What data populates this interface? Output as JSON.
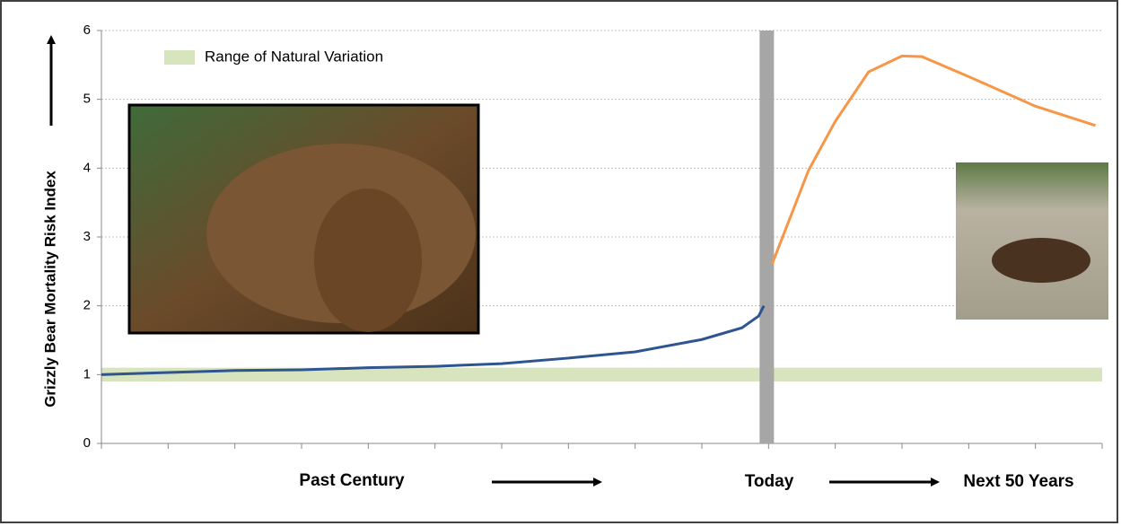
{
  "chart_data": {
    "type": "line",
    "y_label": "Grizzly Bear Mortality Risk Index",
    "ylim": [
      0,
      6
    ],
    "yticks": [
      0,
      1,
      2,
      3,
      4,
      5,
      6
    ],
    "xlim": [
      0,
      15
    ],
    "xticks": [
      0,
      1,
      2,
      3,
      4,
      5,
      6,
      7,
      8,
      9,
      10,
      11,
      12,
      13,
      14,
      15
    ],
    "grid": true,
    "band": {
      "name": "Range of Natural Variation",
      "color": "#d7e4bd",
      "range": [
        0.9,
        1.1
      ]
    },
    "today_x": 10,
    "today_color": "#a6a6a6",
    "annotations": [
      "Past Century",
      "Today",
      "Next 50 Years"
    ],
    "series": [
      {
        "color": "#2e5590",
        "x": [
          0,
          1,
          2,
          3,
          4,
          5,
          6,
          7,
          8,
          9,
          9.6,
          9.85,
          9.93
        ],
        "values": [
          1.0,
          1.03,
          1.06,
          1.07,
          1.1,
          1.12,
          1.16,
          1.24,
          1.33,
          1.51,
          1.68,
          1.85,
          2.0
        ]
      },
      {
        "color": "#f79646",
        "x": [
          10.05,
          10.6,
          11,
          11.5,
          12,
          12.3,
          13,
          14,
          14.9
        ],
        "values": [
          2.6,
          3.97,
          4.68,
          5.4,
          5.63,
          5.62,
          5.33,
          4.9,
          4.62
        ]
      }
    ]
  }
}
